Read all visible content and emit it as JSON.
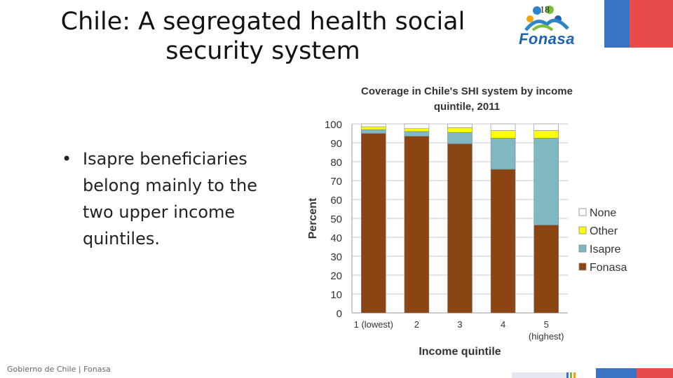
{
  "slide": {
    "title": "Chile: A segregated health social security system",
    "number": "18",
    "bullet": "Isapre beneficiaries belong mainly to the two upper income quintiles.",
    "logo_text": "Fonasa",
    "footer": "Gobierno de Chile | Fonasa"
  },
  "colors": {
    "fonasa": "#8b4513",
    "isapre": "#7fb8c0",
    "other": "#ffff00",
    "none": "#ffffff",
    "flag_blue": "#3a73c3",
    "flag_red": "#e94a4a"
  },
  "chart_data": {
    "type": "bar",
    "stacked": true,
    "title": "Coverage in Chile's SHI system by income quintile, 2011",
    "xlabel": "Income quintile",
    "ylabel": "Percent",
    "ylim": [
      0,
      100
    ],
    "yticks": [
      0,
      10,
      20,
      30,
      40,
      50,
      60,
      70,
      80,
      90,
      100
    ],
    "categories": [
      "1 (lowest)",
      "2",
      "3",
      "4",
      "5 (highest)"
    ],
    "series": [
      {
        "name": "Fonasa",
        "values": [
          95,
          93.5,
          89.5,
          76,
          46.5
        ]
      },
      {
        "name": "Isapre",
        "values": [
          2,
          2.5,
          6,
          16.5,
          46
        ]
      },
      {
        "name": "Other",
        "values": [
          1.5,
          1.5,
          2.5,
          4,
          4
        ]
      },
      {
        "name": "None",
        "values": [
          1.5,
          2.5,
          2,
          3.5,
          3.5
        ]
      }
    ],
    "legend_position": "right",
    "grid": true
  }
}
